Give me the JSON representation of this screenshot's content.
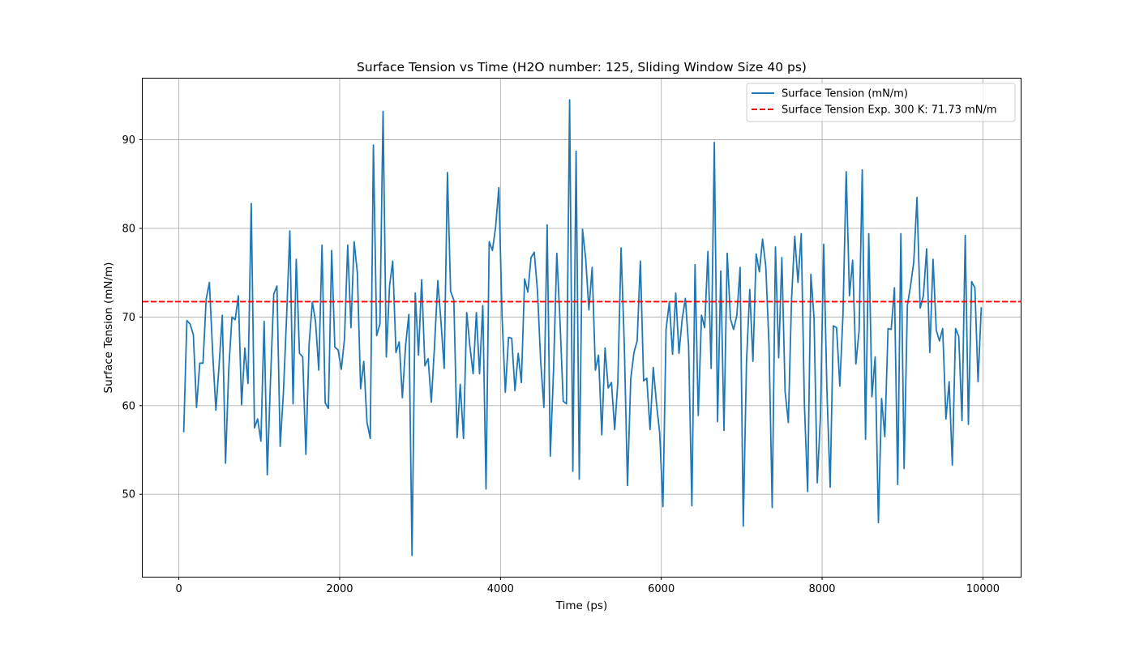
{
  "chart_data": {
    "type": "line",
    "title": "Surface Tension vs Time (H2O number: 125, Sliding Window Size 40 ps)",
    "xlabel": "Time (ps)",
    "ylabel": "Surface Tension (mN/m)",
    "xlim": [
      -450,
      10470
    ],
    "ylim": [
      40.7,
      96.9
    ],
    "xticks": [
      0,
      2000,
      4000,
      6000,
      8000,
      10000
    ],
    "yticks": [
      50,
      60,
      70,
      80,
      90
    ],
    "grid": true,
    "legend_position": "top-right",
    "series": [
      {
        "name": "Surface Tension (mN/m)",
        "color": "#1f77b4",
        "style": "solid",
        "x": [
          60,
          100,
          140,
          180,
          220,
          260,
          300,
          340,
          380,
          420,
          460,
          500,
          540,
          580,
          620,
          660,
          700,
          740,
          780,
          820,
          860,
          900,
          940,
          980,
          1020,
          1060,
          1100,
          1140,
          1180,
          1220,
          1260,
          1300,
          1340,
          1380,
          1420,
          1460,
          1500,
          1540,
          1580,
          1620,
          1660,
          1700,
          1740,
          1780,
          1820,
          1860,
          1900,
          1940,
          1980,
          2020,
          2060,
          2100,
          2140,
          2180,
          2220,
          2260,
          2300,
          2340,
          2380,
          2420,
          2460,
          2500,
          2540,
          2580,
          2620,
          2660,
          2700,
          2740,
          2780,
          2820,
          2860,
          2900,
          2940,
          2980,
          3020,
          3060,
          3100,
          3140,
          3180,
          3220,
          3260,
          3300,
          3340,
          3380,
          3420,
          3460,
          3500,
          3540,
          3580,
          3620,
          3660,
          3700,
          3740,
          3780,
          3820,
          3860,
          3900,
          3940,
          3980,
          4020,
          4060,
          4100,
          4140,
          4180,
          4220,
          4260,
          4300,
          4340,
          4380,
          4420,
          4460,
          4500,
          4540,
          4580,
          4620,
          4660,
          4700,
          4740,
          4780,
          4820,
          4860,
          4900,
          4940,
          4980,
          5020,
          5060,
          5100,
          5140,
          5180,
          5220,
          5260,
          5300,
          5340,
          5380,
          5420,
          5460,
          5500,
          5540,
          5580,
          5620,
          5660,
          5700,
          5740,
          5780,
          5820,
          5860,
          5900,
          5940,
          5980,
          6020,
          6060,
          6100,
          6140,
          6180,
          6220,
          6260,
          6300,
          6340,
          6380,
          6420,
          6460,
          6500,
          6540,
          6580,
          6620,
          6660,
          6700,
          6740,
          6780,
          6820,
          6860,
          6900,
          6940,
          6980,
          7020,
          7060,
          7100,
          7140,
          7180,
          7220,
          7260,
          7300,
          7340,
          7380,
          7420,
          7460,
          7500,
          7540,
          7580,
          7620,
          7660,
          7700,
          7740,
          7780,
          7820,
          7860,
          7900,
          7940,
          7980,
          8020,
          8060,
          8100,
          8140,
          8180,
          8220,
          8260,
          8300,
          8340,
          8380,
          8420,
          8460,
          8500,
          8540,
          8580,
          8620,
          8660,
          8700,
          8740,
          8780,
          8820,
          8860,
          8900,
          8940,
          8980,
          9020,
          9060,
          9100,
          9140,
          9180,
          9220,
          9260,
          9300,
          9340,
          9380,
          9420,
          9460,
          9500,
          9540,
          9580,
          9620,
          9660,
          9700,
          9740,
          9780,
          9820,
          9860,
          9900,
          9940,
          9980
        ],
        "y": [
          57,
          69.6,
          69.2,
          68,
          59.8,
          64.8,
          64.8,
          72,
          73.9,
          66,
          59.5,
          64.5,
          70.2,
          53.5,
          64,
          70,
          69.7,
          72.4,
          60.1,
          66.5,
          62.5,
          82.8,
          57.5,
          58.5,
          56,
          69.5,
          52.2,
          63,
          72.6,
          73.5,
          55.4,
          61.5,
          70,
          79.7,
          60.2,
          76.5,
          65.9,
          65.5,
          54.5,
          67,
          71.7,
          69.5,
          64,
          78.1,
          60.3,
          59.7,
          77.5,
          66.6,
          66.3,
          64.1,
          67.5,
          78.1,
          68.8,
          78.5,
          75,
          61.9,
          65,
          58.1,
          56.3,
          89.4,
          67.9,
          69.2,
          93.2,
          65.5,
          73.5,
          76.3,
          66,
          67.2,
          60.9,
          66.8,
          70.3,
          43.1,
          72.7,
          65.7,
          74.2,
          64.5,
          65.3,
          60.4,
          66.8,
          74.1,
          69.5,
          64.2,
          86.3,
          72.9,
          71.9,
          56.4,
          62.4,
          56.3,
          70.5,
          66.7,
          63.6,
          70.5,
          63.6,
          71.3,
          50.6,
          78.5,
          77.5,
          80.2,
          84.6,
          70,
          61.5,
          67.7,
          67.6,
          61.7,
          65.9,
          62.6,
          74.3,
          72.8,
          76.7,
          77.3,
          72.9,
          65,
          59.8,
          80.4,
          54.3,
          64,
          77.2,
          69.7,
          60.5,
          60.2,
          94.5,
          52.6,
          88.7,
          51.7,
          79.9,
          76.5,
          70.8,
          75.6,
          64,
          65.7,
          56.7,
          66.5,
          62,
          62.6,
          57.3,
          62.7,
          77.8,
          66.7,
          51,
          63,
          66,
          67.3,
          76.3,
          62.8,
          63.1,
          57.3,
          64.3,
          60.3,
          56.9,
          48.6,
          68.6,
          71.7,
          65.8,
          72.7,
          65.9,
          69.8,
          72.1,
          66.7,
          48.7,
          75.9,
          58.9,
          70.2,
          68.8,
          77.4,
          64.2,
          89.7,
          58.2,
          75.2,
          57.2,
          77.2,
          69.8,
          68.6,
          70.2,
          75.6,
          46.4,
          64.9,
          73.1,
          65,
          77.1,
          75.1,
          78.8,
          75.7,
          66.7,
          48.5,
          77.9,
          65.4,
          76.7,
          61.6,
          58.1,
          71.9,
          79.1,
          73.9,
          79.4,
          60.2,
          50.3,
          74.8,
          69.9,
          51.3,
          59,
          78.2,
          61.7,
          50.8,
          69,
          68.8,
          62.2,
          70.3,
          86.4,
          72.4,
          76.4,
          64.7,
          68.5,
          86.6,
          56.2,
          79.4,
          61,
          65.5,
          46.8,
          60.8,
          56.5,
          68.7,
          68.6,
          73.3,
          51.1,
          79.4,
          52.9,
          71.3,
          73.5,
          76.2,
          83.5,
          71,
          72.4,
          77.7,
          66,
          76.5,
          68.5,
          67.3,
          68.7,
          58.5,
          62.7,
          53.3,
          68.7,
          67.8,
          58.3,
          79.2,
          57.9,
          74,
          73.3,
          62.7,
          71.1
        ]
      },
      {
        "name": "Surface Tension Exp. 300 K: 71.73 mN/m",
        "color": "#ff0000",
        "style": "dashed",
        "y_constant": 71.73
      }
    ]
  }
}
